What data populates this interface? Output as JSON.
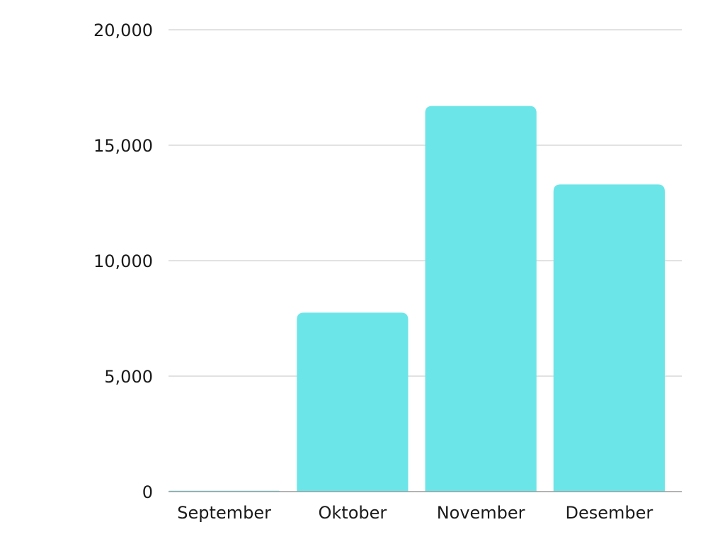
{
  "chart_data": {
    "type": "bar",
    "categories": [
      "September",
      "Oktober",
      "November",
      "Desember"
    ],
    "values": [
      40,
      7750,
      16700,
      13300
    ],
    "ylim": [
      0,
      20000
    ],
    "yticks": [
      0,
      5000,
      10000,
      15000,
      20000
    ],
    "ytick_labels": [
      "0",
      "5,000",
      "10,000",
      "15,000",
      "20,000"
    ],
    "grid": true,
    "legend": "none",
    "bar_color": "#6ce5e8",
    "grid_color": "#d9d9d9",
    "axis_color": "#9a9a9a"
  }
}
